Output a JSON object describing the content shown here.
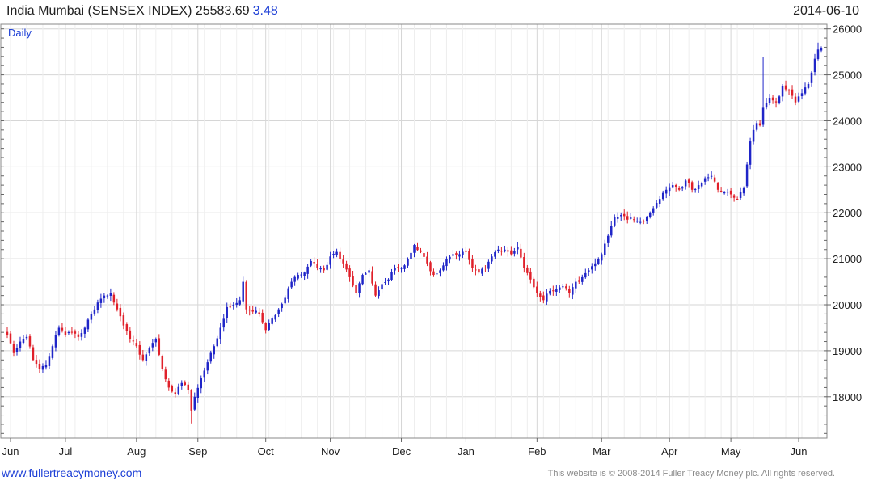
{
  "header": {
    "title": "India Mumbai (SENSEX INDEX) 25583.69",
    "change": "3.48",
    "date": "2014-06-10"
  },
  "footer": {
    "link": "www.fullertreacymoney.com",
    "copyright": "This website is © 2008-2014 Fuller Treacy Money plc. All rights reserved."
  },
  "colors": {
    "up": "#1f25c8",
    "down": "#e0202a",
    "grid": "#d6d6d6",
    "frame": "#888888"
  },
  "chart_data": {
    "type": "candlestick",
    "title": "India Mumbai (SENSEX INDEX) 25583.69",
    "period_label": "Daily",
    "ylim": [
      17100,
      26100
    ],
    "y_ticks": [
      18000,
      19000,
      20000,
      21000,
      22000,
      23000,
      24000,
      25000,
      26000
    ],
    "x_ticks": [
      {
        "label": "Jun",
        "idx": 1
      },
      {
        "label": "Jul",
        "idx": 18
      },
      {
        "label": "Aug",
        "idx": 40
      },
      {
        "label": "Sep",
        "idx": 59
      },
      {
        "label": "Oct",
        "idx": 80
      },
      {
        "label": "Nov",
        "idx": 100
      },
      {
        "label": "Dec",
        "idx": 122
      },
      {
        "label": "Jan",
        "idx": 142
      },
      {
        "label": "Feb",
        "idx": 164
      },
      {
        "label": "Mar",
        "idx": 184
      },
      {
        "label": "Apr",
        "idx": 205
      },
      {
        "label": "May",
        "idx": 224
      },
      {
        "label": "Jun",
        "idx": 245
      }
    ],
    "anchors": [
      [
        0,
        19350
      ],
      [
        2,
        18950
      ],
      [
        4,
        19200
      ],
      [
        6,
        19300
      ],
      [
        8,
        18800
      ],
      [
        10,
        18600
      ],
      [
        12,
        18700
      ],
      [
        14,
        19100
      ],
      [
        16,
        19500
      ],
      [
        18,
        19350
      ],
      [
        20,
        19400
      ],
      [
        22,
        19300
      ],
      [
        24,
        19500
      ],
      [
        26,
        19800
      ],
      [
        28,
        20050
      ],
      [
        30,
        20200
      ],
      [
        32,
        20250
      ],
      [
        34,
        19900
      ],
      [
        36,
        19550
      ],
      [
        38,
        19250
      ],
      [
        40,
        19100
      ],
      [
        42,
        18800
      ],
      [
        44,
        19050
      ],
      [
        46,
        19250
      ],
      [
        48,
        18600
      ],
      [
        50,
        18200
      ],
      [
        52,
        18050
      ],
      [
        54,
        18300
      ],
      [
        56,
        18150
      ],
      [
        57,
        17700
      ],
      [
        58,
        18000
      ],
      [
        60,
        18400
      ],
      [
        62,
        18750
      ],
      [
        64,
        19100
      ],
      [
        66,
        19500
      ],
      [
        68,
        19950
      ],
      [
        70,
        20000
      ],
      [
        72,
        20100
      ],
      [
        73,
        20500
      ],
      [
        74,
        19900
      ],
      [
        76,
        19850
      ],
      [
        78,
        19800
      ],
      [
        80,
        19450
      ],
      [
        82,
        19700
      ],
      [
        84,
        19900
      ],
      [
        86,
        20150
      ],
      [
        88,
        20500
      ],
      [
        90,
        20650
      ],
      [
        92,
        20700
      ],
      [
        94,
        20950
      ],
      [
        96,
        20800
      ],
      [
        98,
        20750
      ],
      [
        100,
        21050
      ],
      [
        102,
        21150
      ],
      [
        104,
        20900
      ],
      [
        106,
        20600
      ],
      [
        108,
        20250
      ],
      [
        110,
        20650
      ],
      [
        112,
        20750
      ],
      [
        114,
        20200
      ],
      [
        116,
        20450
      ],
      [
        118,
        20550
      ],
      [
        120,
        20800
      ],
      [
        122,
        20800
      ],
      [
        124,
        21000
      ],
      [
        126,
        21300
      ],
      [
        128,
        21150
      ],
      [
        130,
        20900
      ],
      [
        132,
        20650
      ],
      [
        134,
        20750
      ],
      [
        136,
        21000
      ],
      [
        138,
        21100
      ],
      [
        140,
        21100
      ],
      [
        142,
        21150
      ],
      [
        144,
        20800
      ],
      [
        146,
        20700
      ],
      [
        148,
        20800
      ],
      [
        150,
        21050
      ],
      [
        152,
        21200
      ],
      [
        154,
        21200
      ],
      [
        156,
        21100
      ],
      [
        158,
        21250
      ],
      [
        160,
        20800
      ],
      [
        162,
        20550
      ],
      [
        164,
        20250
      ],
      [
        166,
        20100
      ],
      [
        168,
        20300
      ],
      [
        170,
        20350
      ],
      [
        172,
        20400
      ],
      [
        174,
        20250
      ],
      [
        176,
        20500
      ],
      [
        178,
        20600
      ],
      [
        180,
        20750
      ],
      [
        182,
        20900
      ],
      [
        184,
        21100
      ],
      [
        186,
        21500
      ],
      [
        188,
        21900
      ],
      [
        190,
        21950
      ],
      [
        192,
        21850
      ],
      [
        194,
        21850
      ],
      [
        196,
        21800
      ],
      [
        198,
        21900
      ],
      [
        200,
        22100
      ],
      [
        202,
        22300
      ],
      [
        204,
        22500
      ],
      [
        206,
        22600
      ],
      [
        208,
        22500
      ],
      [
        210,
        22700
      ],
      [
        212,
        22500
      ],
      [
        214,
        22600
      ],
      [
        216,
        22750
      ],
      [
        218,
        22800
      ],
      [
        220,
        22500
      ],
      [
        222,
        22450
      ],
      [
        224,
        22400
      ],
      [
        226,
        22300
      ],
      [
        228,
        22550
      ],
      [
        229,
        23050
      ],
      [
        230,
        23550
      ],
      [
        231,
        23800
      ],
      [
        232,
        23950
      ],
      [
        233,
        23900
      ],
      [
        234,
        24300
      ],
      [
        236,
        24500
      ],
      [
        238,
        24400
      ],
      [
        240,
        24750
      ],
      [
        242,
        24650
      ],
      [
        244,
        24400
      ],
      [
        246,
        24600
      ],
      [
        248,
        24800
      ],
      [
        249,
        25050
      ],
      [
        250,
        25350
      ],
      [
        251,
        25550
      ],
      [
        252,
        25620
      ]
    ],
    "last_close": 25583.69
  }
}
